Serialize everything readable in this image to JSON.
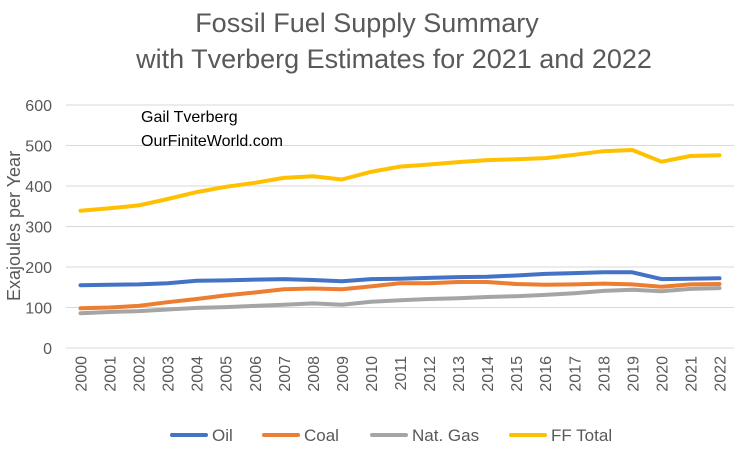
{
  "chart_data": {
    "type": "line",
    "title_lines": [
      "Fossil Fuel Supply Summary",
      "with Tverberg Estimates for 2021 and 2022"
    ],
    "annotation_lines": [
      "Gail Tverberg",
      "OurFiniteWorld.com"
    ],
    "xlabel": "",
    "ylabel": "Exajoules per Year",
    "ylim": [
      0,
      600
    ],
    "yticks": [
      0,
      100,
      200,
      300,
      400,
      500,
      600
    ],
    "grid": true,
    "legend_position": "bottom",
    "categories": [
      "2000",
      "2001",
      "2002",
      "2003",
      "2004",
      "2005",
      "2006",
      "2007",
      "2008",
      "2009",
      "2010",
      "2011",
      "2012",
      "2013",
      "2014",
      "2015",
      "2016",
      "2017",
      "2018",
      "2019",
      "2020",
      "2021",
      "2022"
    ],
    "series": [
      {
        "name": "Oil",
        "color": "#4472c4",
        "values": [
          155,
          156,
          157,
          160,
          166,
          167,
          169,
          170,
          168,
          165,
          170,
          171,
          173,
          175,
          176,
          179,
          183,
          185,
          187,
          187,
          170,
          171,
          172
        ]
      },
      {
        "name": "Coal",
        "color": "#ed7d31",
        "values": [
          98,
          100,
          104,
          113,
          121,
          130,
          137,
          145,
          147,
          145,
          152,
          160,
          160,
          163,
          163,
          158,
          156,
          157,
          159,
          157,
          151,
          157,
          158
        ]
      },
      {
        "name": "Nat. Gas",
        "color": "#a5a5a5",
        "values": [
          86,
          89,
          91,
          95,
          99,
          101,
          104,
          107,
          110,
          107,
          114,
          118,
          121,
          123,
          126,
          128,
          131,
          135,
          141,
          144,
          140,
          146,
          148
        ]
      },
      {
        "name": "FF Total",
        "color": "#ffc000",
        "values": [
          339,
          345,
          352,
          368,
          385,
          398,
          408,
          420,
          424,
          416,
          435,
          448,
          453,
          459,
          464,
          466,
          469,
          477,
          486,
          489,
          460,
          474,
          476
        ]
      }
    ]
  }
}
